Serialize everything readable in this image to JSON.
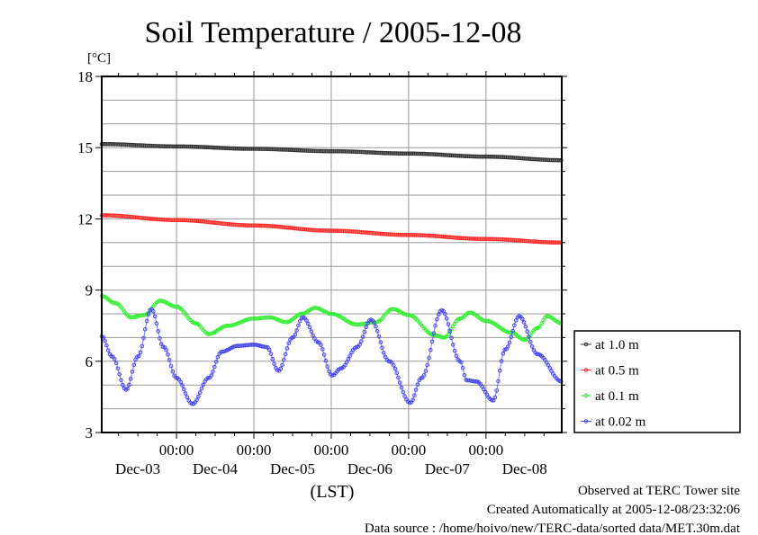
{
  "chart_data": {
    "type": "line",
    "title": "Soil Temperature / 2005-12-08",
    "ylabel": "[°C]",
    "xlabel": "(LST)",
    "ylim": [
      3,
      18
    ],
    "yticks": [
      3,
      6,
      9,
      12,
      15,
      18
    ],
    "ygrid_step": 1,
    "x_unit": "hours since Dec-03 00:00 (LST)",
    "xlim": [
      0.8,
      143.5
    ],
    "xticks": [
      {
        "x": 24,
        "time": "00:00",
        "date": "Dec-03"
      },
      {
        "x": 48,
        "time": "00:00",
        "date": "Dec-04"
      },
      {
        "x": 72,
        "time": "00:00",
        "date": "Dec-05"
      },
      {
        "x": 96,
        "time": "00:00",
        "date": "Dec-06"
      },
      {
        "x": 120,
        "time": "00:00",
        "date": "Dec-07"
      }
    ],
    "extra_date_label": "Dec-08",
    "minor_tick_hours": 6,
    "grid": true,
    "legend_position": "right",
    "series": [
      {
        "name": "at 1.0 m",
        "color": "#333333",
        "points": [
          [
            0.8,
            15.15
          ],
          [
            24,
            15.05
          ],
          [
            48,
            14.95
          ],
          [
            72,
            14.85
          ],
          [
            96,
            14.75
          ],
          [
            120,
            14.62
          ],
          [
            143.5,
            14.47
          ]
        ]
      },
      {
        "name": "at 0.5 m",
        "color": "#ff2a2a",
        "points": [
          [
            0.8,
            12.15
          ],
          [
            24,
            11.95
          ],
          [
            48,
            11.72
          ],
          [
            72,
            11.5
          ],
          [
            96,
            11.32
          ],
          [
            120,
            11.15
          ],
          [
            143.5,
            11.0
          ]
        ]
      },
      {
        "name": "at 0.1 m",
        "color": "#33ee33",
        "points": [
          [
            0.8,
            8.75
          ],
          [
            5,
            8.45
          ],
          [
            10,
            7.85
          ],
          [
            14,
            7.95
          ],
          [
            19,
            8.55
          ],
          [
            24,
            8.3
          ],
          [
            30,
            7.6
          ],
          [
            34,
            7.15
          ],
          [
            40,
            7.5
          ],
          [
            48,
            7.8
          ],
          [
            53,
            7.85
          ],
          [
            58,
            7.65
          ],
          [
            63,
            8.0
          ],
          [
            67,
            8.25
          ],
          [
            72,
            8.0
          ],
          [
            80,
            7.55
          ],
          [
            86,
            7.65
          ],
          [
            91,
            8.2
          ],
          [
            96,
            7.95
          ],
          [
            104,
            7.1
          ],
          [
            107,
            7.0
          ],
          [
            112,
            7.8
          ],
          [
            115,
            8.05
          ],
          [
            120,
            7.7
          ],
          [
            128,
            7.2
          ],
          [
            132,
            6.9
          ],
          [
            136,
            7.4
          ],
          [
            139,
            7.9
          ],
          [
            143.5,
            7.6
          ]
        ]
      },
      {
        "name": "at 0.02 m",
        "color": "#4444ee",
        "points": [
          [
            0.8,
            7.05
          ],
          [
            4,
            6.2
          ],
          [
            8.4,
            4.8
          ],
          [
            12,
            6.2
          ],
          [
            16.2,
            8.2
          ],
          [
            20,
            6.6
          ],
          [
            24,
            5.3
          ],
          [
            29,
            4.2
          ],
          [
            34,
            5.3
          ],
          [
            38,
            6.4
          ],
          [
            43,
            6.65
          ],
          [
            48,
            6.7
          ],
          [
            52,
            6.6
          ],
          [
            55.6,
            5.6
          ],
          [
            60,
            7.0
          ],
          [
            63.2,
            7.85
          ],
          [
            68,
            6.8
          ],
          [
            72.3,
            5.4
          ],
          [
            75,
            5.7
          ],
          [
            80,
            6.6
          ],
          [
            84.3,
            7.75
          ],
          [
            90,
            6.0
          ],
          [
            96.5,
            4.25
          ],
          [
            100,
            5.3
          ],
          [
            106.3,
            8.15
          ],
          [
            112,
            6.0
          ],
          [
            114,
            5.2
          ],
          [
            117,
            5.15
          ],
          [
            122.2,
            4.35
          ],
          [
            126,
            6.5
          ],
          [
            130.3,
            7.9
          ],
          [
            136,
            6.3
          ],
          [
            143.5,
            5.15
          ]
        ]
      }
    ]
  },
  "footer": {
    "line1": "Observed at TERC Tower site",
    "line2": "Created Automatically at 2005-12-08/23:32:06",
    "line3": "Data source : /home/hoivo/new/TERC-data/sorted  data/MET.30m.dat"
  }
}
